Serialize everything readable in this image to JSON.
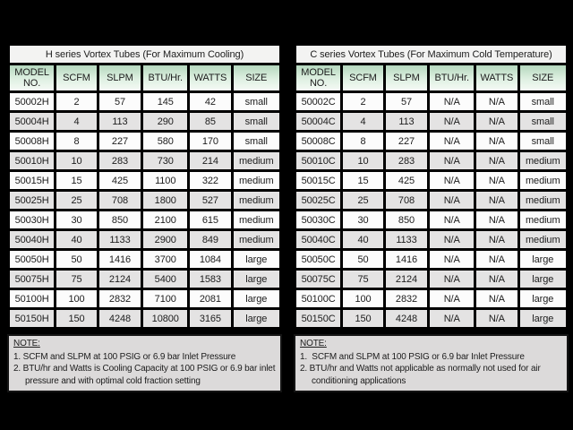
{
  "page": {
    "background_color": "#000000",
    "note_background_color": "#dcdada",
    "header_gradient_top": "#b5d8be",
    "header_gradient_bottom": "#f5faf5",
    "row_alt_color": "#e4e3e3"
  },
  "tables": [
    {
      "id": "h-series",
      "title": "H series Vortex Tubes (For Maximum Cooling)",
      "columns": [
        "MODEL NO.",
        "SCFM",
        "SLPM",
        "BTU/Hr.",
        "WATTS",
        "SIZE"
      ],
      "rows": [
        [
          "50002H",
          "2",
          "57",
          "145",
          "42",
          "small"
        ],
        [
          "50004H",
          "4",
          "113",
          "290",
          "85",
          "small"
        ],
        [
          "50008H",
          "8",
          "227",
          "580",
          "170",
          "small"
        ],
        [
          "50010H",
          "10",
          "283",
          "730",
          "214",
          "medium"
        ],
        [
          "50015H",
          "15",
          "425",
          "1100",
          "322",
          "medium"
        ],
        [
          "50025H",
          "25",
          "708",
          "1800",
          "527",
          "medium"
        ],
        [
          "50030H",
          "30",
          "850",
          "2100",
          "615",
          "medium"
        ],
        [
          "50040H",
          "40",
          "1133",
          "2900",
          "849",
          "medium"
        ],
        [
          "50050H",
          "50",
          "1416",
          "3700",
          "1084",
          "large"
        ],
        [
          "50075H",
          "75",
          "2124",
          "5400",
          "1583",
          "large"
        ],
        [
          "50100H",
          "100",
          "2832",
          "7100",
          "2081",
          "large"
        ],
        [
          "50150H",
          "150",
          "4248",
          "10800",
          "3165",
          "large"
        ]
      ],
      "note": {
        "heading": "NOTE:",
        "lines": [
          "1. SCFM and SLPM at 100 PSIG or 6.9 bar Inlet Pressure",
          "2. BTU/hr and Watts is Cooling Capacity at 100 PSIG or 6.9 bar inlet pressure and with optimal cold fraction setting"
        ]
      }
    },
    {
      "id": "c-series",
      "title": "C series Vortex Tubes (For Maximum Cold Temperature)",
      "columns": [
        "MODEL NO.",
        "SCFM",
        "SLPM",
        "BTU/Hr.",
        "WATTS",
        "SIZE"
      ],
      "rows": [
        [
          "50002C",
          "2",
          "57",
          "N/A",
          "N/A",
          "small"
        ],
        [
          "50004C",
          "4",
          "113",
          "N/A",
          "N/A",
          "small"
        ],
        [
          "50008C",
          "8",
          "227",
          "N/A",
          "N/A",
          "small"
        ],
        [
          "50010C",
          "10",
          "283",
          "N/A",
          "N/A",
          "medium"
        ],
        [
          "50015C",
          "15",
          "425",
          "N/A",
          "N/A",
          "medium"
        ],
        [
          "50025C",
          "25",
          "708",
          "N/A",
          "N/A",
          "medium"
        ],
        [
          "50030C",
          "30",
          "850",
          "N/A",
          "N/A",
          "medium"
        ],
        [
          "50040C",
          "40",
          "1133",
          "N/A",
          "N/A",
          "medium"
        ],
        [
          "50050C",
          "50",
          "1416",
          "N/A",
          "N/A",
          "large"
        ],
        [
          "50075C",
          "75",
          "2124",
          "N/A",
          "N/A",
          "large"
        ],
        [
          "50100C",
          "100",
          "2832",
          "N/A",
          "N/A",
          "large"
        ],
        [
          "50150C",
          "150",
          "4248",
          "N/A",
          "N/A",
          "large"
        ]
      ],
      "note": {
        "heading": "NOTE:",
        "lines": [
          "1.  SCFM and SLPM at 100 PSIG or 6.9 bar Inlet Pressure",
          "2. BTU/hr and Watts not applicable as normally not used for air conditioning applications"
        ]
      }
    }
  ]
}
